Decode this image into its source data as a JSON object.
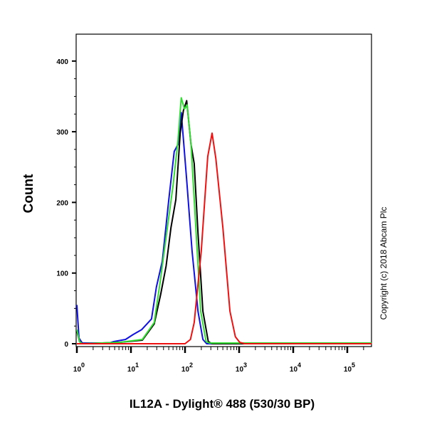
{
  "chart_data": {
    "type": "line",
    "title": "",
    "xlabel": "IL12A - Dylight® 488 (530/30 BP)",
    "ylabel": "Count",
    "xscale": "log",
    "xlim_log10": [
      0,
      5.45
    ],
    "ylim": [
      0,
      420
    ],
    "x_tick_labels": [
      {
        "base": "10",
        "exp": "0",
        "log": 0
      },
      {
        "base": "10",
        "exp": "1",
        "log": 1
      },
      {
        "base": "10",
        "exp": "2",
        "log": 2
      },
      {
        "base": "10",
        "exp": "3",
        "log": 3
      },
      {
        "base": "10",
        "exp": "4",
        "log": 4
      },
      {
        "base": "10",
        "exp": "5",
        "log": 5
      }
    ],
    "y_ticks": [
      0,
      100,
      200,
      300,
      400
    ],
    "grid": false,
    "annotation": "Copyright (c) 2018 Abcam Plc",
    "series": [
      {
        "name": "blue",
        "color": "#1010e0",
        "points": [
          [
            0,
            55
          ],
          [
            0.04,
            8
          ],
          [
            0.1,
            1
          ],
          [
            0.6,
            1
          ],
          [
            0.68,
            3
          ],
          [
            0.9,
            6
          ],
          [
            1.04,
            13
          ],
          [
            1.2,
            20
          ],
          [
            1.38,
            35
          ],
          [
            1.47,
            80
          ],
          [
            1.58,
            117
          ],
          [
            1.7,
            204
          ],
          [
            1.8,
            272
          ],
          [
            1.87,
            282
          ],
          [
            1.93,
            327
          ],
          [
            2.03,
            232
          ],
          [
            2.13,
            131
          ],
          [
            2.24,
            46
          ],
          [
            2.33,
            6
          ],
          [
            2.4,
            0
          ],
          [
            5.45,
            0
          ]
        ]
      },
      {
        "name": "black",
        "color": "#000000",
        "points": [
          [
            0,
            18
          ],
          [
            0.05,
            3
          ],
          [
            0.1,
            0
          ],
          [
            0.8,
            2
          ],
          [
            1.21,
            5
          ],
          [
            1.43,
            28
          ],
          [
            1.55,
            70
          ],
          [
            1.65,
            110
          ],
          [
            1.74,
            164
          ],
          [
            1.83,
            204
          ],
          [
            1.91,
            298
          ],
          [
            1.97,
            330
          ],
          [
            2.03,
            344
          ],
          [
            2.11,
            282
          ],
          [
            2.17,
            255
          ],
          [
            2.24,
            157
          ],
          [
            2.33,
            46
          ],
          [
            2.43,
            3
          ],
          [
            2.5,
            0
          ],
          [
            5.45,
            0
          ]
        ]
      },
      {
        "name": "green",
        "color": "#33dd33",
        "points": [
          [
            0,
            20
          ],
          [
            0.05,
            3
          ],
          [
            0.1,
            0
          ],
          [
            0.8,
            2
          ],
          [
            1.21,
            6
          ],
          [
            1.43,
            30
          ],
          [
            1.54,
            87
          ],
          [
            1.65,
            151
          ],
          [
            1.78,
            225
          ],
          [
            1.87,
            288
          ],
          [
            1.93,
            348
          ],
          [
            1.99,
            332
          ],
          [
            2.04,
            338
          ],
          [
            2.11,
            282
          ],
          [
            2.2,
            164
          ],
          [
            2.29,
            46
          ],
          [
            2.39,
            3
          ],
          [
            2.45,
            1
          ],
          [
            5.45,
            1
          ]
        ]
      },
      {
        "name": "red",
        "color": "#ee1111",
        "points": [
          [
            0,
            0
          ],
          [
            2.0,
            0
          ],
          [
            2.1,
            6
          ],
          [
            2.17,
            30
          ],
          [
            2.3,
            131
          ],
          [
            2.42,
            265
          ],
          [
            2.5,
            298
          ],
          [
            2.57,
            262
          ],
          [
            2.7,
            164
          ],
          [
            2.83,
            46
          ],
          [
            2.93,
            10
          ],
          [
            3.01,
            2
          ],
          [
            3.1,
            0
          ],
          [
            5.45,
            0
          ]
        ]
      }
    ]
  }
}
